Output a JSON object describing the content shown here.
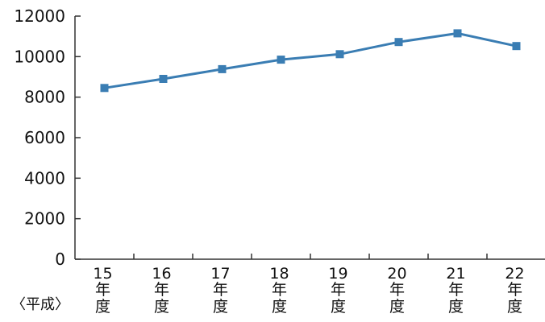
{
  "chart_data": {
    "type": "line",
    "title": "",
    "xlabel": "",
    "ylabel": "",
    "era_label": "〈平成〉",
    "categories": [
      {
        "num": "15",
        "l1": "年",
        "l2": "度"
      },
      {
        "num": "16",
        "l1": "年",
        "l2": "度"
      },
      {
        "num": "17",
        "l1": "年",
        "l2": "度"
      },
      {
        "num": "18",
        "l1": "年",
        "l2": "度"
      },
      {
        "num": "19",
        "l1": "年",
        "l2": "度"
      },
      {
        "num": "20",
        "l1": "年",
        "l2": "度"
      },
      {
        "num": "21",
        "l1": "年",
        "l2": "度"
      },
      {
        "num": "22",
        "l1": "年",
        "l2": "度"
      }
    ],
    "series": [
      {
        "values": [
          8450,
          8900,
          9380,
          9850,
          10120,
          10720,
          11150,
          10520
        ],
        "color": "#3a7db3"
      }
    ],
    "ylim": [
      0,
      12000
    ],
    "yticks": [
      "0",
      "2000",
      "4000",
      "6000",
      "8000",
      "10000",
      "12000"
    ],
    "grid": false,
    "legend": "none",
    "axis_color": "#333333"
  }
}
